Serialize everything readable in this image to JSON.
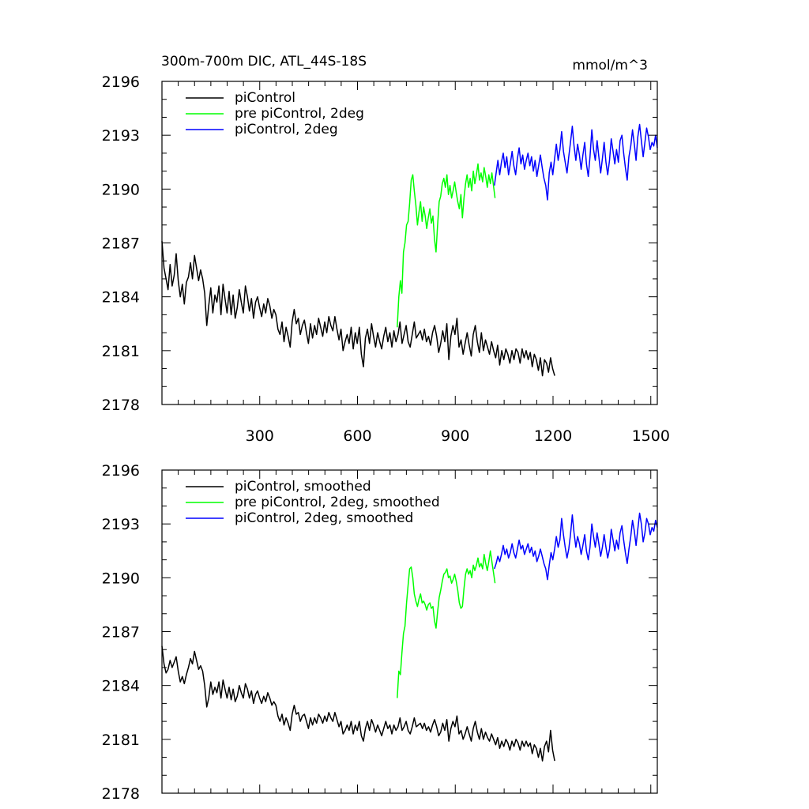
{
  "figure": {
    "title": "300m-700m DIC, ATL_44S-18S",
    "units": "mmol/m^3"
  },
  "chart_data": [
    {
      "type": "line",
      "title": "300m-700m DIC, ATL_44S-18S",
      "units": "mmol/m^3",
      "xlim": [
        0,
        1520
      ],
      "ylim": [
        2178,
        2196
      ],
      "x_ticks": [
        300,
        600,
        900,
        1200,
        1500
      ],
      "y_ticks": [
        2178,
        2181,
        2184,
        2187,
        2190,
        2193,
        2196
      ],
      "show_x_tick_labels": true,
      "grid": false,
      "legend_position": "top-left",
      "series": [
        {
          "name": "piControl",
          "color": "#000000",
          "x_start": 0,
          "x_step": 10,
          "y": [
            2187.1,
            2185.6,
            2185.0,
            2184.4,
            2185.8,
            2184.6,
            2185.2,
            2186.4,
            2184.9,
            2184.0,
            2184.7,
            2183.6,
            2184.8,
            2185.1,
            2185.9,
            2185.0,
            2186.3,
            2185.6,
            2184.9,
            2185.5,
            2185.0,
            2184.2,
            2182.4,
            2183.5,
            2184.5,
            2183.1,
            2184.1,
            2183.7,
            2184.6,
            2183.0,
            2184.7,
            2183.9,
            2183.1,
            2184.3,
            2183.0,
            2184.1,
            2182.8,
            2183.4,
            2184.4,
            2183.7,
            2183.1,
            2184.6,
            2184.0,
            2183.2,
            2183.9,
            2182.8,
            2183.7,
            2184.0,
            2183.4,
            2182.9,
            2183.6,
            2183.1,
            2183.9,
            2183.5,
            2182.8,
            2183.3,
            2183.0,
            2182.2,
            2181.9,
            2182.6,
            2181.5,
            2182.3,
            2181.8,
            2181.2,
            2182.6,
            2183.3,
            2182.5,
            2182.8,
            2181.9,
            2182.4,
            2182.7,
            2182.0,
            2181.4,
            2182.5,
            2181.7,
            2182.4,
            2181.9,
            2182.8,
            2182.3,
            2181.8,
            2182.6,
            2182.0,
            2182.9,
            2182.4,
            2182.1,
            2182.9,
            2182.2,
            2181.6,
            2182.2,
            2181.0,
            2181.5,
            2181.9,
            2181.4,
            2182.3,
            2181.1,
            2182.0,
            2181.4,
            2182.3,
            2180.8,
            2180.1,
            2181.7,
            2182.2,
            2181.4,
            2182.5,
            2181.8,
            2181.2,
            2182.0,
            2181.5,
            2181.1,
            2181.8,
            2182.3,
            2181.5,
            2182.0,
            2181.2,
            2182.1,
            2181.5,
            2181.9,
            2182.6,
            2181.4,
            2181.9,
            2182.4,
            2181.5,
            2181.2,
            2181.9,
            2182.6,
            2181.7,
            2181.9,
            2182.1,
            2181.6,
            2182.2,
            2181.5,
            2181.8,
            2181.3,
            2182.0,
            2182.4,
            2181.8,
            2180.9,
            2181.4,
            2182.1,
            2181.5,
            2182.5,
            2180.5,
            2181.8,
            2182.4,
            2181.9,
            2182.8,
            2181.2,
            2181.6,
            2180.8,
            2181.4,
            2182.0,
            2181.3,
            2180.7,
            2181.9,
            2182.4,
            2181.5,
            2180.9,
            2182.0,
            2181.0,
            2181.6,
            2181.2,
            2180.8,
            2181.5,
            2181.0,
            2180.6,
            2181.3,
            2180.2,
            2181.0,
            2180.5,
            2181.1,
            2180.8,
            2180.3,
            2181.0,
            2180.5,
            2181.1,
            2180.9,
            2180.3,
            2181.1,
            2180.6,
            2181.0,
            2180.5,
            2180.9,
            2180.1,
            2180.8,
            2180.5,
            2179.9,
            2180.6,
            2179.6,
            2180.5,
            2180.3,
            2179.8,
            2180.6,
            2180.0,
            2179.6
          ],
          "x_end": 1205
        },
        {
          "name": "pre piControl, 2deg",
          "color": "#00ff00",
          "x_start": 722,
          "x_step": 6,
          "y": [
            2182.3,
            2184.0,
            2184.9,
            2184.2,
            2186.5,
            2187.0,
            2188.0,
            2188.2,
            2189.2,
            2190.5,
            2190.8,
            2189.9,
            2189.1,
            2188.0,
            2188.7,
            2189.3,
            2188.2,
            2189.0,
            2188.5,
            2187.8,
            2188.4,
            2188.9,
            2188.1,
            2188.5,
            2187.2,
            2186.5,
            2188.0,
            2189.3,
            2189.6,
            2190.3,
            2190.6,
            2190.1,
            2190.8,
            2189.7,
            2190.2,
            2189.5,
            2189.9,
            2190.4,
            2189.8,
            2189.3,
            2188.9,
            2189.7,
            2188.4,
            2189.5,
            2190.3,
            2190.8,
            2190.1,
            2190.6,
            2189.9,
            2191.0,
            2190.3,
            2190.8,
            2191.4,
            2190.5,
            2190.9,
            2190.4,
            2191.2,
            2190.7,
            2190.1,
            2190.8,
            2190.3,
            2190.9,
            2190.2,
            2189.5
          ],
          "x_end": 1022
        },
        {
          "name": "piControl, 2deg",
          "color": "#0000ff",
          "x_start": 1020,
          "x_step": 6,
          "y": [
            2190.2,
            2190.9,
            2191.6,
            2190.8,
            2191.5,
            2192.0,
            2191.2,
            2191.8,
            2190.8,
            2191.4,
            2192.1,
            2191.3,
            2190.8,
            2191.7,
            2192.3,
            2191.4,
            2191.9,
            2191.1,
            2191.6,
            2192.0,
            2191.3,
            2191.8,
            2191.0,
            2191.6,
            2190.7,
            2191.3,
            2191.9,
            2191.2,
            2190.6,
            2190.2,
            2189.4,
            2190.9,
            2191.5,
            2190.8,
            2191.7,
            2192.5,
            2191.6,
            2192.2,
            2193.2,
            2192.1,
            2191.5,
            2190.9,
            2191.8,
            2192.6,
            2193.5,
            2192.4,
            2191.6,
            2192.5,
            2191.9,
            2191.1,
            2191.9,
            2192.6,
            2191.4,
            2190.7,
            2191.8,
            2193.3,
            2192.2,
            2191.6,
            2192.7,
            2191.8,
            2190.9,
            2191.7,
            2192.6,
            2191.5,
            2190.8,
            2191.6,
            2192.8,
            2192.1,
            2191.4,
            2192.2,
            2191.5,
            2192.7,
            2193.0,
            2192.0,
            2191.2,
            2190.5,
            2191.8,
            2192.4,
            2193.3,
            2192.5,
            2191.6,
            2192.9,
            2193.6,
            2192.7,
            2191.8,
            2192.6,
            2193.4,
            2192.9,
            2192.2,
            2192.6,
            2192.4,
            2193.0,
            2192.3
          ],
          "x_end": 1520
        }
      ]
    },
    {
      "type": "line",
      "xlim": [
        0,
        1520
      ],
      "ylim": [
        2178,
        2196
      ],
      "x_ticks": [
        300,
        600,
        900,
        1200,
        1500
      ],
      "y_ticks": [
        2178,
        2181,
        2184,
        2187,
        2190,
        2193,
        2196
      ],
      "show_x_tick_labels": false,
      "grid": false,
      "legend_position": "top-left",
      "series": [
        {
          "name": "piControl, smoothed",
          "color": "#000000",
          "x_start": 0,
          "x_step": 10,
          "y": [
            2186.2,
            2185.2,
            2184.7,
            2184.9,
            2185.4,
            2185.0,
            2185.3,
            2185.6,
            2184.8,
            2184.2,
            2184.5,
            2184.1,
            2184.6,
            2185.0,
            2185.5,
            2185.2,
            2185.9,
            2185.4,
            2184.9,
            2185.1,
            2184.8,
            2184.0,
            2182.8,
            2183.3,
            2184.2,
            2183.5,
            2183.9,
            2183.6,
            2184.2,
            2183.3,
            2184.3,
            2183.8,
            2183.3,
            2183.9,
            2183.2,
            2183.8,
            2183.1,
            2183.4,
            2184.0,
            2183.6,
            2183.3,
            2184.1,
            2183.8,
            2183.3,
            2183.7,
            2183.0,
            2183.5,
            2183.7,
            2183.3,
            2183.0,
            2183.4,
            2183.1,
            2183.6,
            2183.3,
            2182.9,
            2183.1,
            2182.9,
            2182.3,
            2182.0,
            2182.4,
            2181.8,
            2182.2,
            2181.9,
            2181.5,
            2182.4,
            2182.9,
            2182.4,
            2182.5,
            2182.0,
            2182.3,
            2182.4,
            2182.0,
            2181.6,
            2182.2,
            2181.8,
            2182.2,
            2181.9,
            2182.4,
            2182.2,
            2181.9,
            2182.3,
            2182.0,
            2182.5,
            2182.2,
            2182.0,
            2182.5,
            2182.1,
            2181.7,
            2182.0,
            2181.3,
            2181.5,
            2181.8,
            2181.5,
            2182.0,
            2181.3,
            2181.8,
            2181.5,
            2182.0,
            2181.2,
            2180.9,
            2181.6,
            2182.0,
            2181.5,
            2182.1,
            2181.8,
            2181.4,
            2181.8,
            2181.5,
            2181.2,
            2181.6,
            2182.0,
            2181.6,
            2181.8,
            2181.3,
            2181.8,
            2181.5,
            2181.7,
            2182.2,
            2181.5,
            2181.7,
            2182.0,
            2181.5,
            2181.3,
            2181.7,
            2182.2,
            2181.7,
            2181.8,
            2181.9,
            2181.6,
            2181.9,
            2181.5,
            2181.7,
            2181.4,
            2181.8,
            2182.1,
            2181.7,
            2181.2,
            2181.4,
            2181.9,
            2181.5,
            2182.1,
            2180.9,
            2181.6,
            2182.0,
            2181.7,
            2182.3,
            2181.3,
            2181.5,
            2181.0,
            2181.3,
            2181.7,
            2181.3,
            2180.9,
            2181.6,
            2182.0,
            2181.4,
            2181.0,
            2181.6,
            2181.0,
            2181.4,
            2181.1,
            2180.9,
            2181.3,
            2181.0,
            2180.7,
            2181.1,
            2180.5,
            2180.9,
            2180.6,
            2181.0,
            2180.8,
            2180.4,
            2180.9,
            2180.6,
            2181.0,
            2180.8,
            2180.4,
            2180.9,
            2180.6,
            2180.9,
            2180.6,
            2180.8,
            2180.2,
            2180.7,
            2180.5,
            2180.0,
            2180.5,
            2179.8,
            2180.6,
            2180.9,
            2180.3,
            2181.5,
            2180.4,
            2179.8
          ],
          "x_end": 1205
        },
        {
          "name": "pre piControl, 2deg, smoothed",
          "color": "#00ff00",
          "x_start": 722,
          "x_step": 6,
          "y": [
            2183.3,
            2184.8,
            2184.6,
            2185.8,
            2186.9,
            2187.3,
            2188.6,
            2189.6,
            2190.5,
            2190.6,
            2190.0,
            2189.1,
            2188.7,
            2188.4,
            2188.8,
            2189.1,
            2188.6,
            2188.7,
            2188.5,
            2188.2,
            2188.5,
            2188.6,
            2188.3,
            2188.4,
            2187.6,
            2187.2,
            2188.1,
            2188.9,
            2189.3,
            2189.8,
            2190.2,
            2190.3,
            2190.5,
            2190.0,
            2190.1,
            2189.7,
            2189.9,
            2190.2,
            2189.8,
            2189.3,
            2188.6,
            2188.3,
            2188.4,
            2189.4,
            2190.2,
            2190.5,
            2190.2,
            2190.4,
            2190.0,
            2190.7,
            2190.4,
            2190.7,
            2191.1,
            2190.6,
            2190.8,
            2190.5,
            2191.3,
            2190.8,
            2190.4,
            2190.9,
            2191.5,
            2190.9,
            2190.3,
            2189.7
          ],
          "x_end": 1022
        },
        {
          "name": "piControl, 2deg, smoothed",
          "color": "#0000ff",
          "x_start": 1020,
          "x_step": 6,
          "y": [
            2190.5,
            2190.8,
            2191.2,
            2190.9,
            2191.3,
            2191.8,
            2191.3,
            2191.6,
            2191.1,
            2191.4,
            2191.9,
            2191.4,
            2191.1,
            2191.6,
            2192.1,
            2191.6,
            2191.8,
            2191.3,
            2191.6,
            2191.9,
            2191.4,
            2191.7,
            2191.2,
            2191.5,
            2190.9,
            2191.2,
            2191.6,
            2191.2,
            2190.8,
            2190.5,
            2189.9,
            2190.7,
            2191.4,
            2191.0,
            2191.6,
            2192.3,
            2191.7,
            2192.1,
            2193.3,
            2192.4,
            2191.7,
            2191.1,
            2191.6,
            2192.4,
            2193.5,
            2192.5,
            2191.7,
            2192.3,
            2191.9,
            2191.3,
            2191.8,
            2192.4,
            2191.5,
            2191.0,
            2191.7,
            2193.0,
            2192.3,
            2191.7,
            2192.5,
            2191.9,
            2191.2,
            2191.7,
            2192.4,
            2191.7,
            2191.1,
            2191.6,
            2192.7,
            2192.1,
            2191.5,
            2192.1,
            2191.6,
            2192.5,
            2192.9,
            2192.1,
            2191.4,
            2190.8,
            2191.6,
            2192.3,
            2193.2,
            2192.6,
            2191.8,
            2192.7,
            2193.6,
            2193.0,
            2192.0,
            2192.5,
            2193.3,
            2193.0,
            2192.4,
            2192.8,
            2192.6,
            2193.2,
            2192.8
          ],
          "x_end": 1520
        }
      ]
    }
  ]
}
